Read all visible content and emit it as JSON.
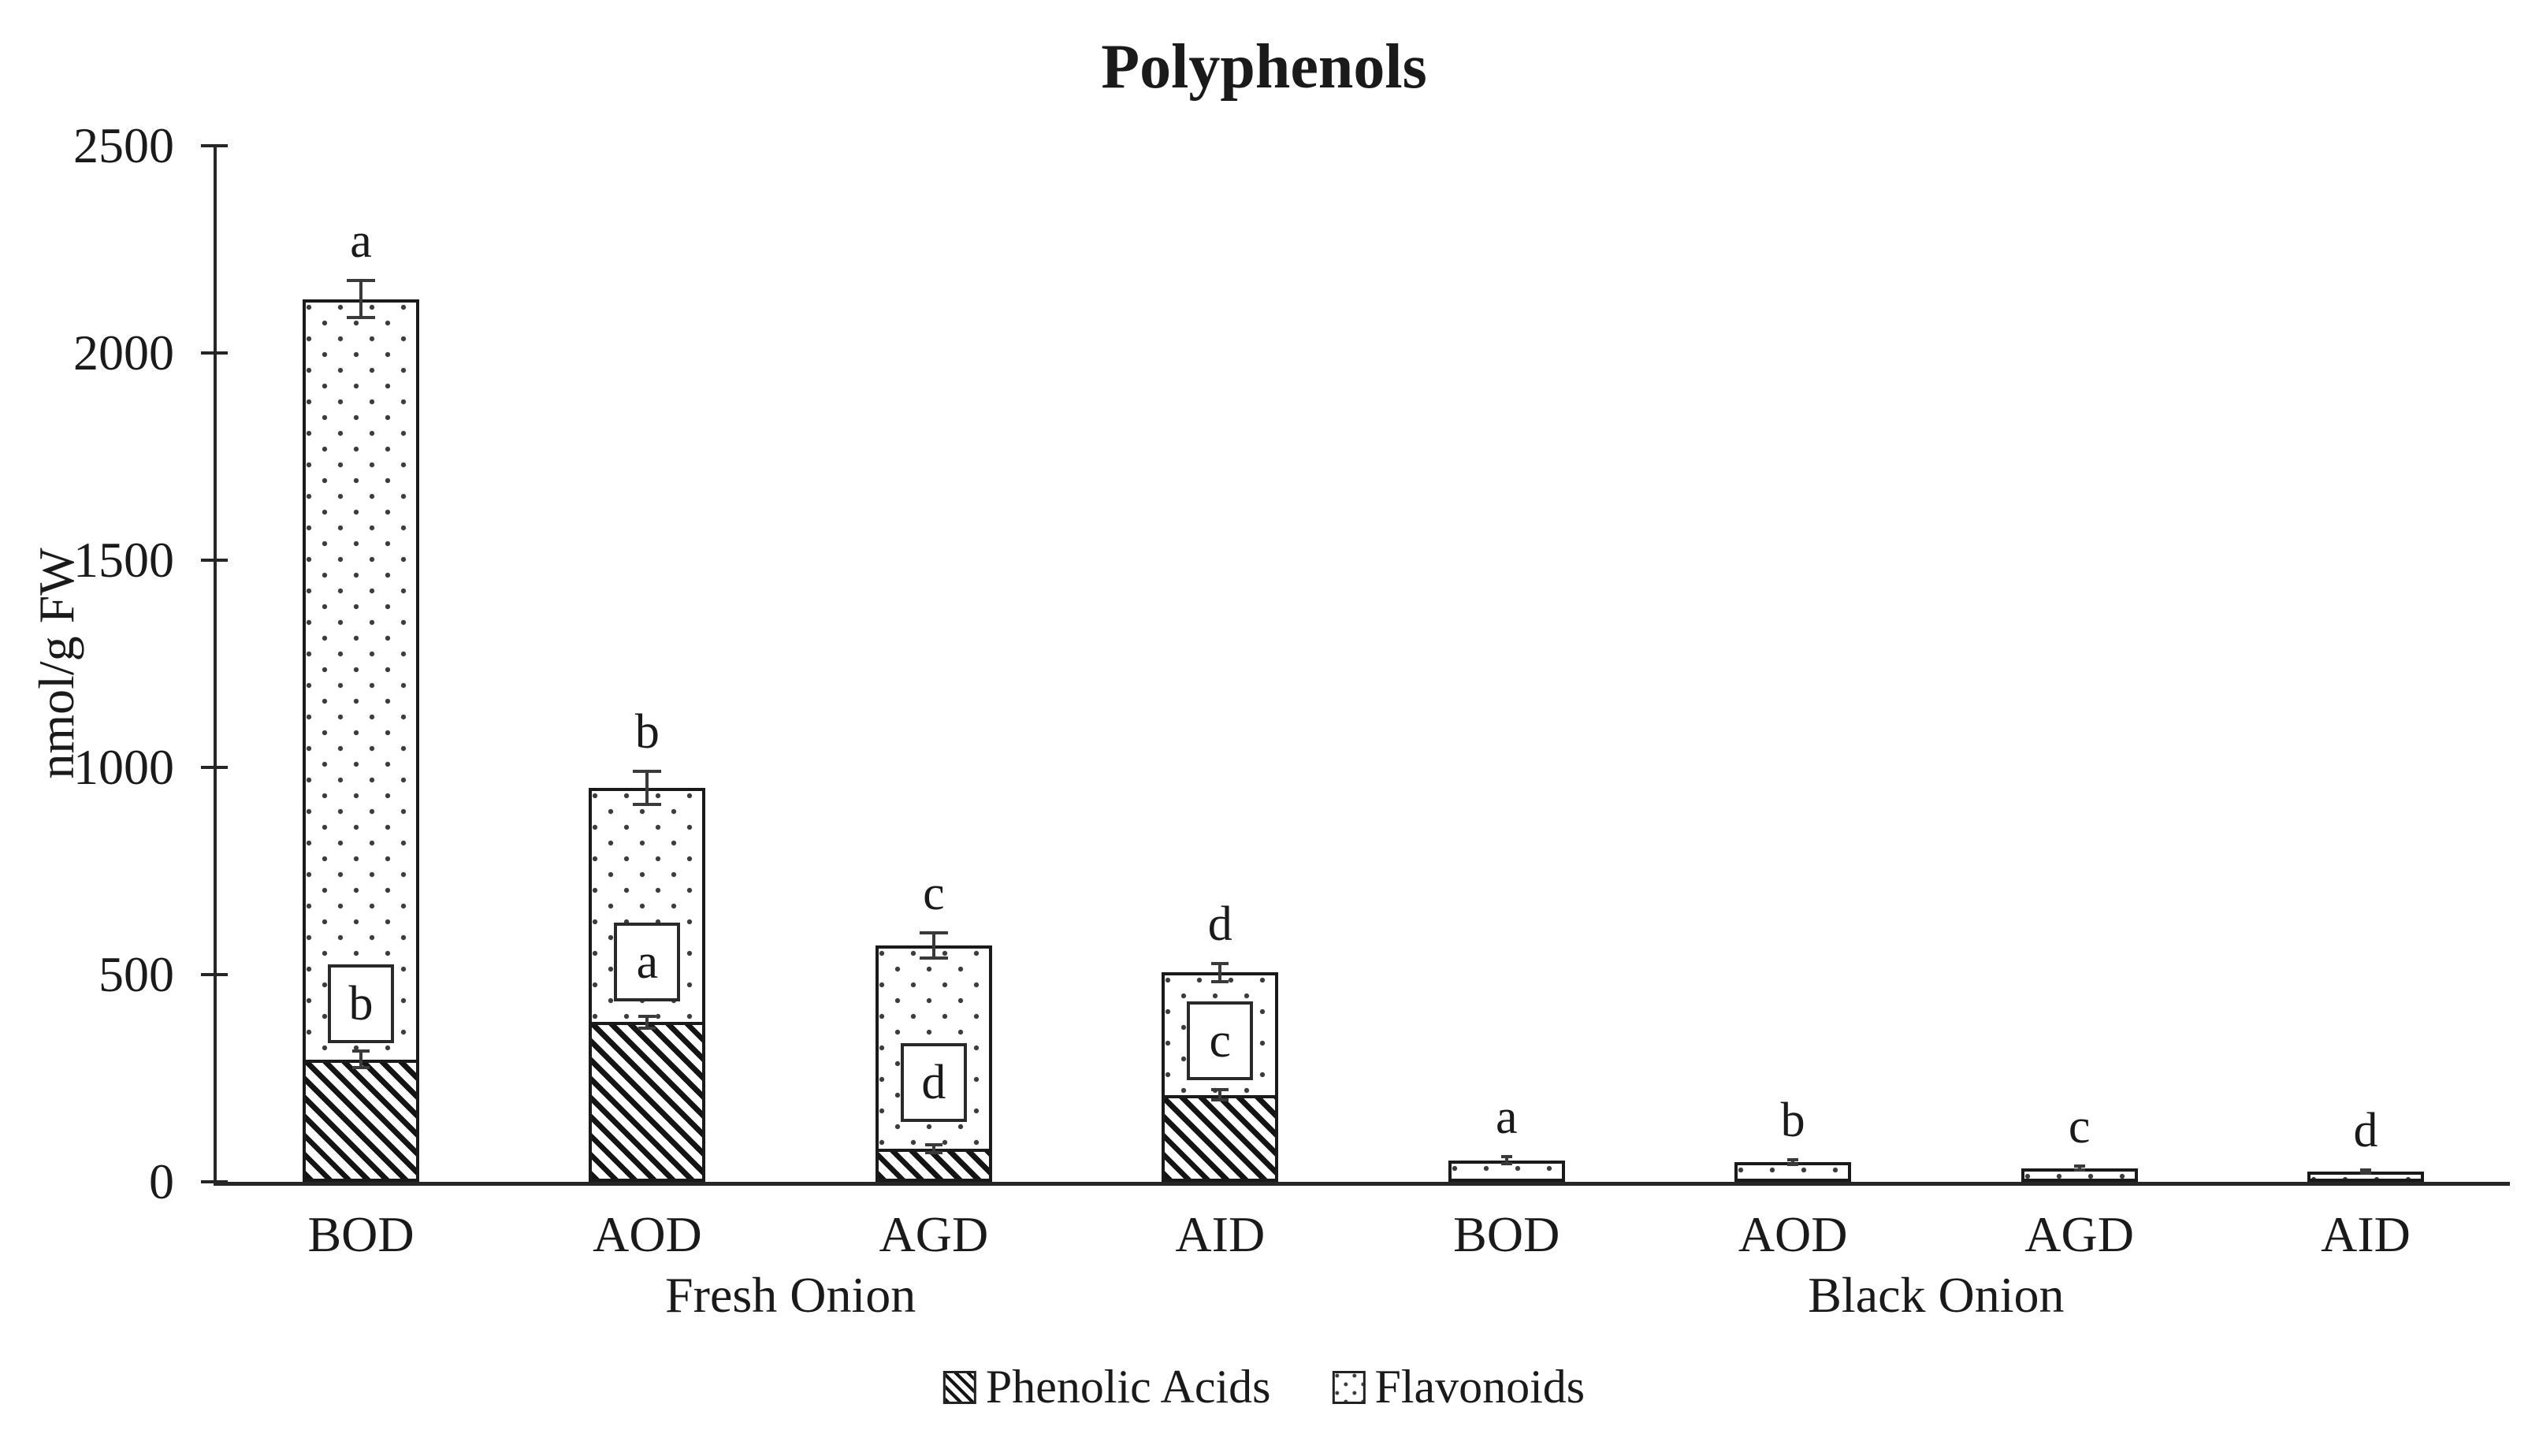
{
  "chart_data": {
    "type": "bar",
    "subtype": "stacked-vertical",
    "title": "Polyphenols",
    "ylabel": "nmol/g FW",
    "ylim": [
      0,
      2500
    ],
    "yticks": [
      0,
      500,
      1000,
      1500,
      2000,
      2500
    ],
    "grid": false,
    "legend_position": "bottom-center",
    "units": "nmol/g FW",
    "series": [
      {
        "name": "Phenolic Acids",
        "pattern": "diagonal-hatch"
      },
      {
        "name": "Flavonoids",
        "pattern": "dots"
      }
    ],
    "groups": [
      {
        "label": "Fresh Onion",
        "categories": [
          "BOD",
          "AOD",
          "AGD",
          "AID"
        ]
      },
      {
        "label": "Black Onion",
        "categories": [
          "BOD",
          "AOD",
          "AGD",
          "AID"
        ]
      }
    ],
    "bars": [
      {
        "group": "Fresh Onion",
        "category": "BOD",
        "phenolic_acids": 295,
        "flavonoids": 1835,
        "total": 2130,
        "total_err": 45,
        "phenolic_err": 20,
        "sig_letter_top": "a",
        "sig_letter_boxed": "b",
        "boxed_letter_y": 430
      },
      {
        "group": "Fresh Onion",
        "category": "AOD",
        "phenolic_acids": 385,
        "flavonoids": 565,
        "total": 950,
        "total_err": 40,
        "phenolic_err": 15,
        "sig_letter_top": "b",
        "sig_letter_boxed": "a",
        "boxed_letter_y": 530
      },
      {
        "group": "Fresh Onion",
        "category": "AGD",
        "phenolic_acids": 80,
        "flavonoids": 490,
        "total": 570,
        "total_err": 30,
        "phenolic_err": 10,
        "sig_letter_top": "c",
        "sig_letter_boxed": "d",
        "boxed_letter_y": 240
      },
      {
        "group": "Fresh Onion",
        "category": "AID",
        "phenolic_acids": 210,
        "flavonoids": 295,
        "total": 505,
        "total_err": 22,
        "phenolic_err": 12,
        "sig_letter_top": "d",
        "sig_letter_boxed": "c",
        "boxed_letter_y": 340
      },
      {
        "group": "Black Onion",
        "category": "BOD",
        "phenolic_acids": 0,
        "flavonoids": 52,
        "total": 52,
        "total_err": 8,
        "phenolic_err": 0,
        "sig_letter_top": "a"
      },
      {
        "group": "Black Onion",
        "category": "AOD",
        "phenolic_acids": 0,
        "flavonoids": 48,
        "total": 48,
        "total_err": 6,
        "phenolic_err": 0,
        "sig_letter_top": "b"
      },
      {
        "group": "Black Onion",
        "category": "AGD",
        "phenolic_acids": 0,
        "flavonoids": 33,
        "total": 33,
        "total_err": 5,
        "phenolic_err": 0,
        "sig_letter_top": "c"
      },
      {
        "group": "Black Onion",
        "category": "AID",
        "phenolic_acids": 0,
        "flavonoids": 25,
        "total": 25,
        "total_err": 4,
        "phenolic_err": 0,
        "sig_letter_top": "d"
      }
    ]
  }
}
